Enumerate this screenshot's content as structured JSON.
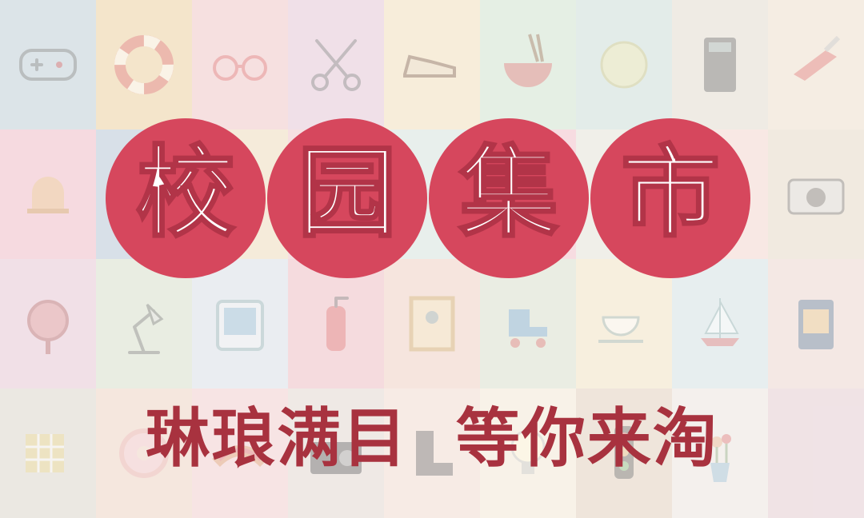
{
  "banner": {
    "title_chars": [
      "校",
      "园",
      "集",
      "市"
    ],
    "subtitle": "琳琅满目  等你来淘",
    "colors": {
      "circle": "#d6475d",
      "title_text": "#ffffff",
      "subtitle_text": "#a8323f"
    }
  },
  "tiles": [
    {
      "color": "#c9d6dc",
      "icon": "gamepad-icon"
    },
    {
      "color": "#eed7b0",
      "icon": "lifebuoy-icon"
    },
    {
      "color": "#f2d0d0",
      "icon": "glasses-icon"
    },
    {
      "color": "#e9d0dc",
      "icon": "scissors-icon"
    },
    {
      "color": "#f3e3c7",
      "icon": "shoe-icon"
    },
    {
      "color": "#d8e6d6",
      "icon": "noodle-bowl-icon"
    },
    {
      "color": "#d5e2dd",
      "icon": "tennis-ball-icon"
    },
    {
      "color": "#e6e0d6",
      "icon": "calculator-icon"
    },
    {
      "color": "#f0e4d4",
      "icon": "pocket-knife-icon"
    },
    {
      "color": "#f2c6cf",
      "icon": "bell-icon"
    },
    {
      "color": "#c3d0dc",
      "icon": "game-controller-icon"
    },
    {
      "color": "#f0e0c6",
      "icon": "blank-icon"
    },
    {
      "color": "#f1cfd3",
      "icon": "blank-icon"
    },
    {
      "color": "#dce6e2",
      "icon": "blank-icon"
    },
    {
      "color": "#f3c9d2",
      "icon": "blank-icon"
    },
    {
      "color": "#e8e6de",
      "icon": "blank-icon"
    },
    {
      "color": "#f4dcd6",
      "icon": "blank-icon"
    },
    {
      "color": "#eadfd0",
      "icon": "camera-icon"
    },
    {
      "color": "#ead0da",
      "icon": "mirror-icon"
    },
    {
      "color": "#dde3d3",
      "icon": "desk-lamp-icon"
    },
    {
      "color": "#dfe4ea",
      "icon": "tablet-icon"
    },
    {
      "color": "#f0c8cc",
      "icon": "fire-extinguisher-icon"
    },
    {
      "color": "#f2d8cc",
      "icon": "picture-frame-icon"
    },
    {
      "color": "#dfe3d4",
      "icon": "roller-skate-icon"
    },
    {
      "color": "#f3e6cc",
      "icon": "teacup-icon"
    },
    {
      "color": "#dbe5e6",
      "icon": "sailboat-icon"
    },
    {
      "color": "#eedcd6",
      "icon": "canned-food-icon"
    },
    {
      "color": "#e1dcd3",
      "icon": "rubik-cube-icon"
    },
    {
      "color": "#f0dbcc",
      "icon": "donut-icon"
    },
    {
      "color": "#f3d6d6",
      "icon": "hot-dog-icon"
    },
    {
      "color": "#e6ddd8",
      "icon": "radio-icon"
    },
    {
      "color": "#f3e1d8",
      "icon": "boot-icon"
    },
    {
      "color": "#f5ecdc",
      "icon": "light-bulb-icon"
    },
    {
      "color": "#e7d8c8",
      "icon": "traffic-light-icon"
    },
    {
      "color": "#eee8e4",
      "icon": "flower-vase-icon"
    },
    {
      "color": "#e8d4d8",
      "icon": "blank-icon"
    }
  ]
}
